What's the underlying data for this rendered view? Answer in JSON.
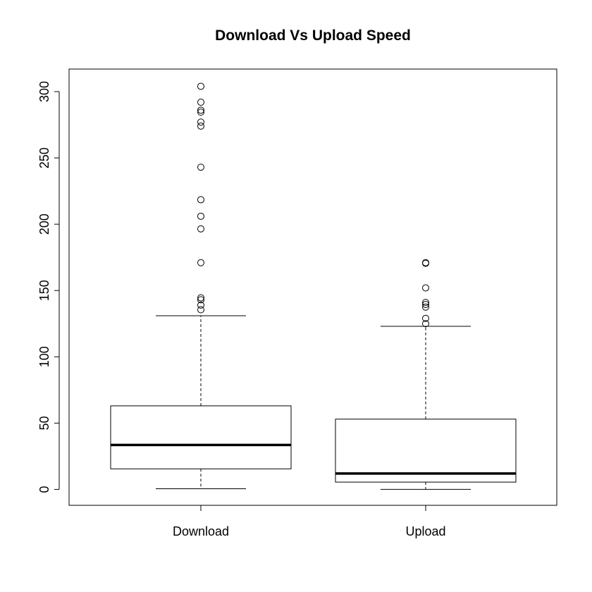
{
  "chart_data": {
    "type": "box",
    "title": "Download Vs Upload Speed",
    "xlabel": "",
    "ylabel": "",
    "ylim": [
      -12,
      317
    ],
    "yticks": [
      0,
      50,
      100,
      150,
      200,
      250,
      300
    ],
    "categories": [
      "Download",
      "Upload"
    ],
    "series": [
      {
        "name": "Download",
        "whisker_low": 0.5,
        "q1": 15.5,
        "median": 33.5,
        "q3": 63,
        "whisker_high": 131,
        "outliers": [
          135.5,
          139,
          143,
          144.5,
          171,
          196.5,
          206,
          218.5,
          243,
          274,
          277,
          284.5,
          286,
          292,
          304
        ]
      },
      {
        "name": "Upload",
        "whisker_low": 0,
        "q1": 5.5,
        "median": 12,
        "q3": 53,
        "whisker_high": 123,
        "outliers": [
          125,
          129,
          137.5,
          139.5,
          141,
          152,
          170.5,
          171
        ]
      }
    ]
  }
}
